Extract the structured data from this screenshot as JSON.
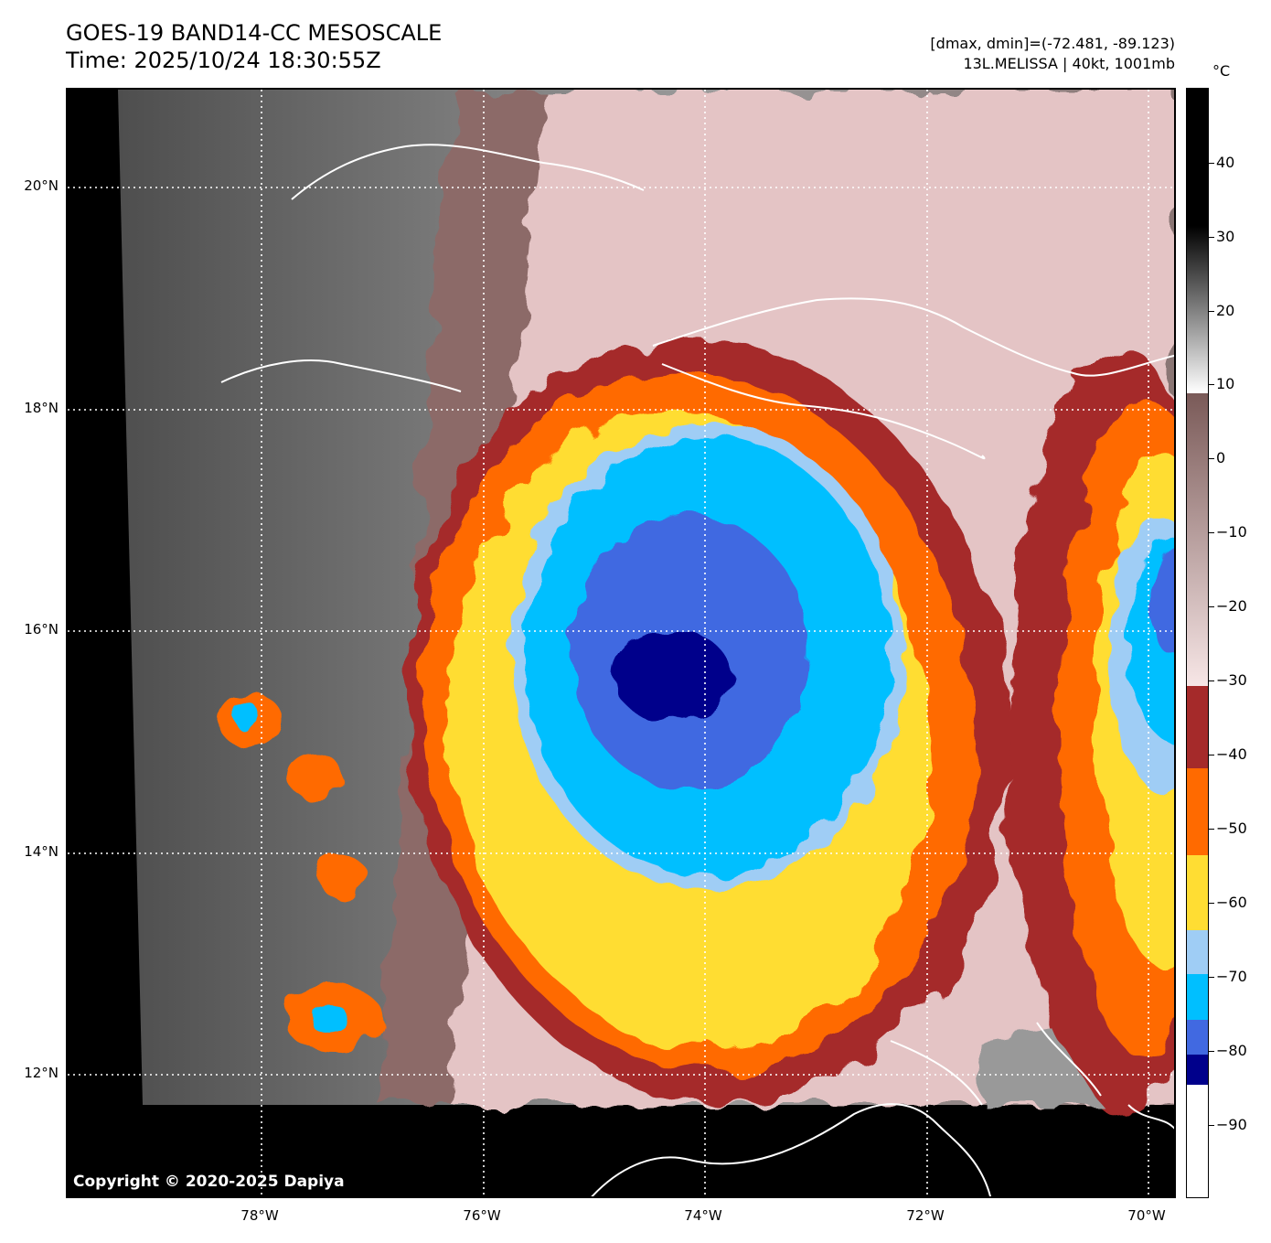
{
  "header": {
    "title_line1": "GOES-19 BAND14-CC MESOSCALE",
    "title_line2": "Time: 2025/10/24 18:30:55Z",
    "meta_line1": "[dmax, dmin]=(-72.481, -89.123)",
    "meta_line2": "13L.MELISSA | 40kt, 1001mb"
  },
  "map": {
    "copyright": "Copyright © 2020-2025 Dapiya",
    "lat_labels": [
      "20°N",
      "18°N",
      "16°N",
      "14°N",
      "12°N"
    ],
    "lon_labels": [
      "78°W",
      "76°W",
      "74°W",
      "72°W",
      "70°W"
    ],
    "storm_name": "13L.MELISSA",
    "imagery": "infrared brightness temperature"
  },
  "colorbar": {
    "unit": "°C",
    "tick_labels": [
      "40",
      "30",
      "20",
      "10",
      "0",
      "−10",
      "−20",
      "−30",
      "−40",
      "−50",
      "−60",
      "−70",
      "−80",
      "−90"
    ],
    "colors": {
      "warm_black": "#000000",
      "gray": "#808080",
      "white": "#ffffff",
      "brown": "#7a5a58",
      "pink": "#f2d9da",
      "dark_red": "#a52a2a",
      "orange": "#ff6a00",
      "yellow": "#ffdd33",
      "light_blue": "#9fcdf5",
      "cyan_blue": "#00bfff",
      "royal_blue": "#4169e1",
      "navy": "#00008b"
    }
  }
}
